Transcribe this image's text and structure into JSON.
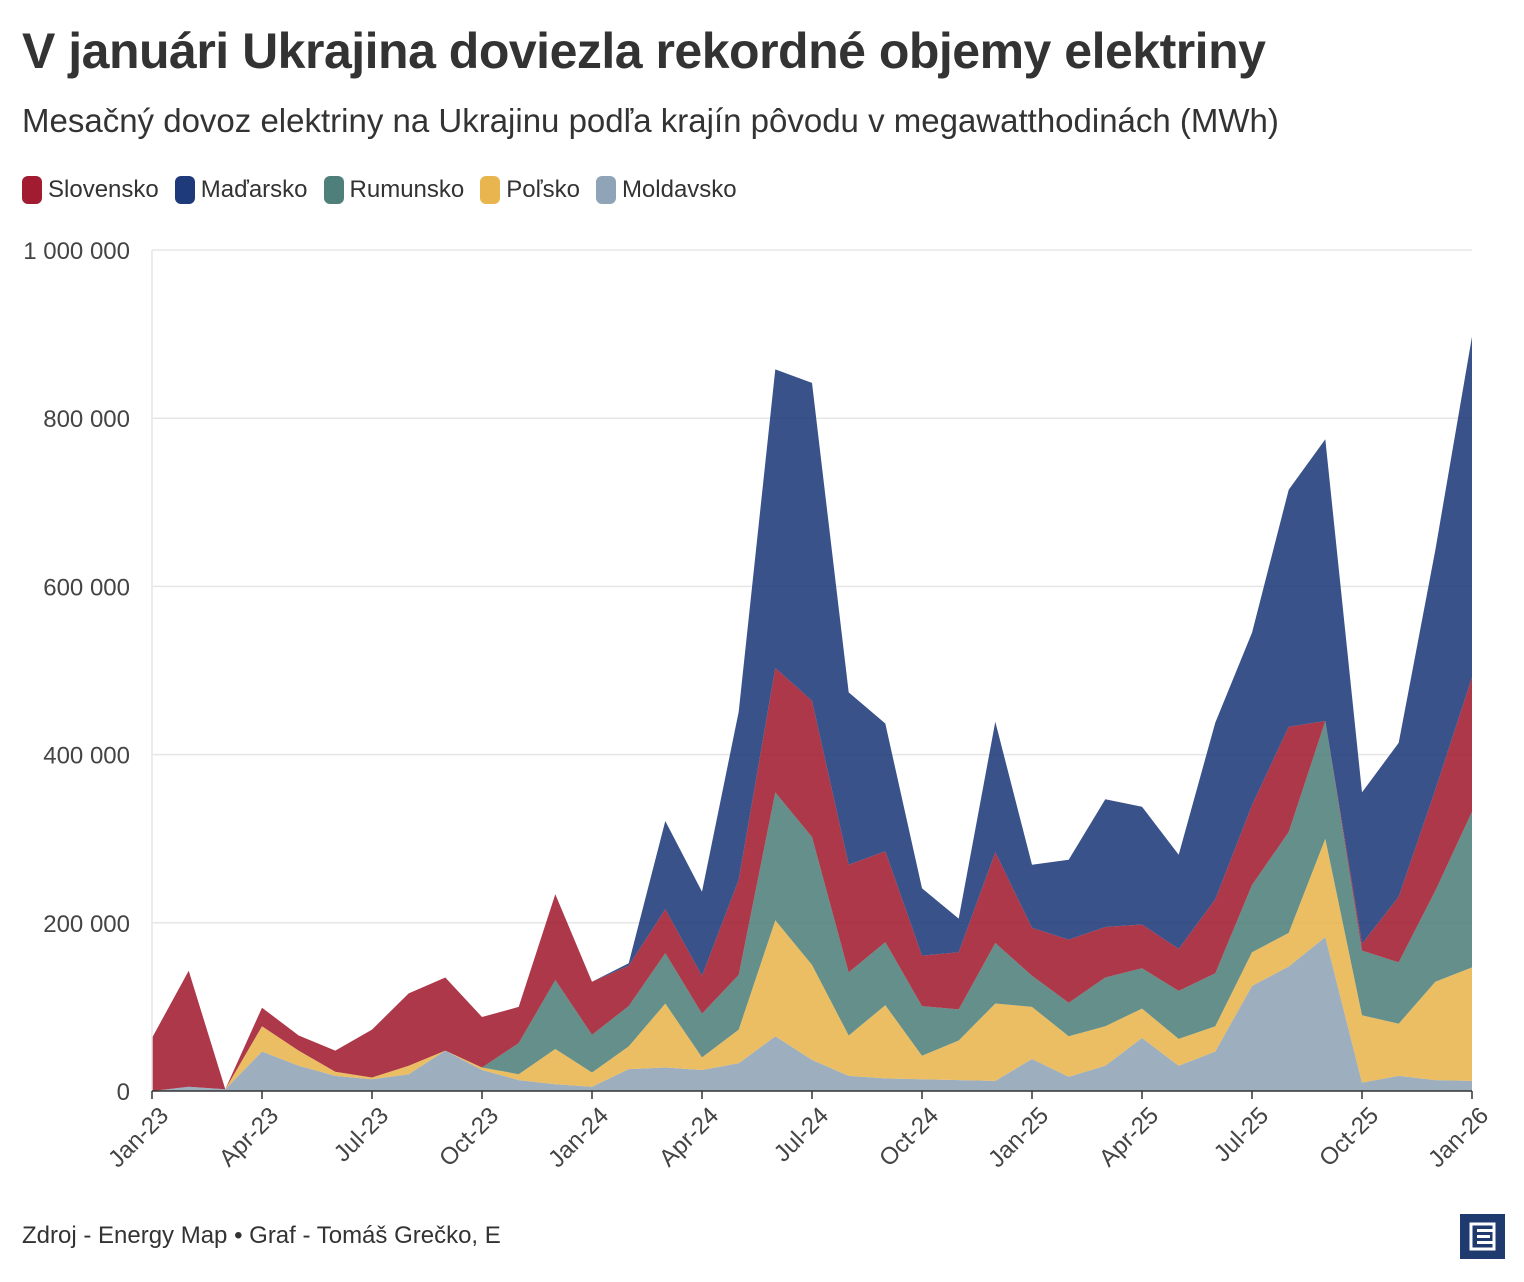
{
  "title": "V januári Ukrajina doviezla rekordné objemy elektriny",
  "subtitle": "Mesačný dovoz elektriny na Ukrajinu podľa krajín pôvodu v megawatthodinách (MWh)",
  "footer": "Zdroj - Energy Map • Graf - Tomáš Grečko, E",
  "colors": {
    "Slovensko": "#a11c30",
    "Maďarsko": "#1f3a7a",
    "Rumunsko": "#4f7f7a",
    "Poľsko": "#e8b54e",
    "Moldavsko": "#8fa4b6"
  },
  "chart_data": {
    "type": "area",
    "stacked": true,
    "title": "V januári Ukrajina doviezla rekordné objemy elektriny",
    "subtitle": "Mesačný dovoz elektriny na Ukrajinu podľa krajín pôvodu v megawatthodinách (MWh)",
    "xlabel": "",
    "ylabel": "",
    "ylim": [
      0,
      1000000
    ],
    "yticks": [
      0,
      200000,
      400000,
      600000,
      800000,
      1000000
    ],
    "ytick_labels": [
      "0",
      "200 000",
      "400 000",
      "600 000",
      "800 000",
      "1 000 000"
    ],
    "xtick_labels": [
      "Jan-23",
      "Apr-23",
      "Jul-23",
      "Oct-23",
      "Jan-24",
      "Apr-24",
      "Jul-24",
      "Oct-24",
      "Jan-25",
      "Apr-25",
      "Jul-25",
      "Oct-25",
      "Jan-26"
    ],
    "xtick_indices": [
      0,
      3,
      6,
      9,
      12,
      15,
      18,
      21,
      24,
      27,
      30,
      33,
      36
    ],
    "categories": [
      "Jan-23",
      "Feb-23",
      "Mar-23",
      "Apr-23",
      "May-23",
      "Jun-23",
      "Jul-23",
      "Aug-23",
      "Sep-23",
      "Oct-23",
      "Nov-23",
      "Dec-23",
      "Jan-24",
      "Feb-24",
      "Mar-24",
      "Apr-24",
      "May-24",
      "Jun-24",
      "Jul-24",
      "Aug-24",
      "Sep-24",
      "Oct-24",
      "Nov-24",
      "Dec-24",
      "Jan-25",
      "Feb-25",
      "Mar-25",
      "Apr-25",
      "May-25",
      "Jun-25",
      "Jul-25",
      "Aug-25",
      "Sep-25",
      "Oct-25",
      "Nov-25",
      "Dec-25",
      "Jan-26"
    ],
    "legend_position": "top-left",
    "grid": true,
    "series": [
      {
        "name": "Moldavsko",
        "values": [
          0,
          5000,
          2000,
          47000,
          30000,
          18000,
          14000,
          20000,
          48000,
          25000,
          13000,
          8000,
          5000,
          26000,
          28000,
          25000,
          33000,
          65000,
          37000,
          18000,
          15000,
          14000,
          13000,
          12000,
          38000,
          17000,
          30000,
          63000,
          30000,
          47000,
          125000,
          148000,
          183000,
          10000,
          18000,
          13000,
          12000
        ]
      },
      {
        "name": "Poľsko",
        "values": [
          0,
          0,
          0,
          30000,
          18000,
          5000,
          2000,
          10000,
          0,
          3000,
          7000,
          42000,
          17000,
          27000,
          76000,
          15000,
          40000,
          138000,
          113000,
          48000,
          87000,
          28000,
          47000,
          92000,
          62000,
          48000,
          47000,
          35000,
          32000,
          30000,
          40000,
          40000,
          117000,
          80000,
          62000,
          117000,
          135000
        ]
      },
      {
        "name": "Rumunsko",
        "values": [
          0,
          0,
          0,
          0,
          0,
          0,
          0,
          0,
          0,
          0,
          37000,
          82000,
          45000,
          48000,
          60000,
          52000,
          65000,
          152000,
          152000,
          75000,
          75000,
          59000,
          37000,
          72000,
          37000,
          40000,
          58000,
          48000,
          57000,
          63000,
          80000,
          120000,
          140000,
          77000,
          73000,
          108000,
          185000
        ]
      },
      {
        "name": "Slovensko",
        "values": [
          63000,
          138000,
          0,
          22000,
          18000,
          25000,
          57000,
          86000,
          87000,
          60000,
          43000,
          102000,
          63000,
          48000,
          52000,
          45000,
          113000,
          148000,
          162000,
          128000,
          108000,
          60000,
          68000,
          108000,
          57000,
          75000,
          60000,
          52000,
          50000,
          88000,
          95000,
          125000,
          0,
          8000,
          78000,
          120000,
          160000
        ]
      },
      {
        "name": "Maďarsko",
        "values": [
          0,
          0,
          0,
          0,
          0,
          0,
          0,
          0,
          0,
          0,
          0,
          0,
          0,
          3000,
          105000,
          100000,
          200000,
          355000,
          378000,
          205000,
          152000,
          80000,
          40000,
          155000,
          75000,
          95000,
          152000,
          140000,
          112000,
          210000,
          205000,
          282000,
          335000,
          180000,
          183000,
          285000,
          405000
        ]
      }
    ]
  }
}
